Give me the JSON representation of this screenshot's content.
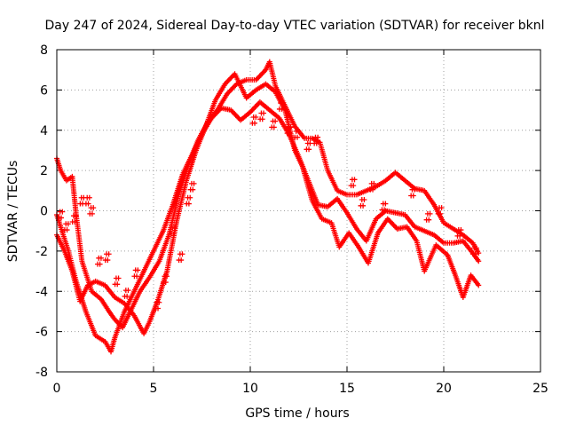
{
  "chart_data": {
    "type": "scatter",
    "title": "Day 247 of 2024, Sidereal Day-to-day VTEC variation (SDTVAR) for receiver bknl",
    "xlabel": "GPS time / hours",
    "ylabel": "SDTVAR / TECUs",
    "xlim": [
      0,
      25
    ],
    "ylim": [
      -8,
      8
    ],
    "xticks": [
      0,
      5,
      10,
      15,
      20,
      25
    ],
    "yticks": [
      -8,
      -6,
      -4,
      -2,
      0,
      2,
      4,
      6,
      8
    ],
    "grid": true,
    "marker": "plus",
    "color": "#ff0000",
    "series": [
      {
        "name": "track-a",
        "points": [
          [
            0.0,
            2.6
          ],
          [
            0.2,
            2.0
          ],
          [
            0.5,
            1.5
          ],
          [
            0.8,
            1.7
          ],
          [
            1.0,
            -0.2
          ],
          [
            1.3,
            -2.5
          ],
          [
            1.8,
            -4.0
          ],
          [
            2.3,
            -4.4
          ],
          [
            2.7,
            -5.0
          ],
          [
            3.0,
            -5.4
          ],
          [
            3.4,
            -5.8
          ],
          [
            3.8,
            -5.0
          ],
          [
            4.3,
            -4.0
          ],
          [
            4.8,
            -3.3
          ],
          [
            5.3,
            -2.5
          ],
          [
            5.8,
            -1.2
          ],
          [
            6.3,
            0.8
          ],
          [
            6.8,
            2.3
          ],
          [
            7.3,
            3.5
          ],
          [
            7.8,
            4.4
          ],
          [
            8.3,
            5.0
          ],
          [
            8.8,
            5.8
          ],
          [
            9.3,
            6.3
          ],
          [
            9.8,
            6.5
          ],
          [
            10.3,
            6.5
          ],
          [
            10.8,
            7.0
          ],
          [
            11.0,
            7.4
          ],
          [
            11.3,
            6.2
          ],
          [
            11.8,
            5.2
          ],
          [
            12.3,
            4.2
          ],
          [
            12.8,
            3.6
          ],
          [
            13.2,
            3.6
          ],
          [
            13.6,
            3.4
          ],
          [
            14.0,
            2.0
          ],
          [
            14.5,
            1.0
          ],
          [
            15.0,
            0.8
          ],
          [
            15.5,
            0.8
          ],
          [
            16.0,
            1.0
          ],
          [
            16.5,
            1.2
          ],
          [
            17.0,
            1.5
          ],
          [
            17.5,
            1.9
          ],
          [
            18.0,
            1.5
          ],
          [
            18.5,
            1.1
          ],
          [
            19.0,
            1.0
          ],
          [
            19.5,
            0.3
          ],
          [
            20.0,
            -0.6
          ],
          [
            20.5,
            -0.9
          ],
          [
            21.0,
            -1.2
          ],
          [
            21.5,
            -1.6
          ],
          [
            21.8,
            -2.1
          ]
        ]
      },
      {
        "name": "track-b",
        "points": [
          [
            0.0,
            -0.2
          ],
          [
            0.3,
            -1.1
          ],
          [
            0.6,
            -2.0
          ],
          [
            1.0,
            -3.5
          ],
          [
            1.5,
            -5.0
          ],
          [
            2.0,
            -6.2
          ],
          [
            2.5,
            -6.5
          ],
          [
            2.8,
            -7.0
          ],
          [
            3.0,
            -6.3
          ],
          [
            3.5,
            -5.0
          ],
          [
            4.0,
            -4.0
          ],
          [
            4.5,
            -3.0
          ],
          [
            5.0,
            -2.0
          ],
          [
            5.5,
            -1.0
          ],
          [
            6.0,
            0.3
          ],
          [
            6.5,
            1.8
          ],
          [
            7.0,
            2.8
          ],
          [
            7.5,
            3.8
          ],
          [
            8.0,
            4.6
          ],
          [
            8.5,
            5.1
          ],
          [
            9.0,
            5.0
          ],
          [
            9.5,
            4.5
          ],
          [
            10.0,
            4.9
          ],
          [
            10.5,
            5.4
          ],
          [
            11.0,
            5.0
          ],
          [
            11.5,
            4.6
          ],
          [
            12.0,
            3.8
          ],
          [
            12.5,
            2.7
          ],
          [
            13.0,
            1.5
          ],
          [
            13.5,
            0.3
          ],
          [
            14.0,
            0.2
          ],
          [
            14.5,
            0.6
          ],
          [
            15.0,
            -0.1
          ],
          [
            15.5,
            -0.9
          ],
          [
            16.0,
            -1.5
          ],
          [
            16.5,
            -0.4
          ],
          [
            17.0,
            0.0
          ],
          [
            17.5,
            -0.1
          ],
          [
            18.0,
            -0.2
          ],
          [
            18.5,
            -0.8
          ],
          [
            19.0,
            -1.0
          ],
          [
            19.5,
            -1.2
          ],
          [
            20.0,
            -1.6
          ],
          [
            20.5,
            -1.6
          ],
          [
            21.0,
            -1.5
          ],
          [
            21.5,
            -2.1
          ],
          [
            21.8,
            -2.5
          ]
        ]
      },
      {
        "name": "track-c",
        "points": [
          [
            0.0,
            -1.2
          ],
          [
            0.4,
            -2.0
          ],
          [
            0.8,
            -3.0
          ],
          [
            1.2,
            -4.5
          ],
          [
            1.6,
            -3.7
          ],
          [
            2.0,
            -3.5
          ],
          [
            2.5,
            -3.7
          ],
          [
            3.0,
            -4.3
          ],
          [
            3.5,
            -4.6
          ],
          [
            4.0,
            -5.2
          ],
          [
            4.5,
            -6.1
          ],
          [
            4.8,
            -5.5
          ],
          [
            5.2,
            -4.5
          ],
          [
            5.7,
            -3.0
          ],
          [
            6.2,
            -0.5
          ],
          [
            6.7,
            1.5
          ],
          [
            7.2,
            3.0
          ],
          [
            7.7,
            4.2
          ],
          [
            8.2,
            5.5
          ],
          [
            8.7,
            6.3
          ],
          [
            9.2,
            6.8
          ],
          [
            9.8,
            5.6
          ],
          [
            10.3,
            6.0
          ],
          [
            10.8,
            6.3
          ],
          [
            11.3,
            5.9
          ],
          [
            11.8,
            5.0
          ],
          [
            12.3,
            3.0
          ],
          [
            12.7,
            2.2
          ],
          [
            13.2,
            0.5
          ],
          [
            13.7,
            -0.4
          ],
          [
            14.2,
            -0.6
          ],
          [
            14.6,
            -1.8
          ],
          [
            15.1,
            -1.1
          ],
          [
            15.6,
            -1.8
          ],
          [
            16.1,
            -2.6
          ],
          [
            16.6,
            -1.1
          ],
          [
            17.1,
            -0.4
          ],
          [
            17.6,
            -0.9
          ],
          [
            18.1,
            -0.8
          ],
          [
            18.6,
            -1.5
          ],
          [
            19.0,
            -3.0
          ],
          [
            19.6,
            -1.7
          ],
          [
            20.2,
            -2.2
          ],
          [
            20.6,
            -3.2
          ],
          [
            21.0,
            -4.3
          ],
          [
            21.4,
            -3.2
          ],
          [
            21.8,
            -3.7
          ]
        ]
      },
      {
        "name": "fragments",
        "points": [
          [
            0.2,
            -0.2
          ],
          [
            0.5,
            -0.8
          ],
          [
            0.9,
            -0.4
          ],
          [
            1.3,
            0.5
          ],
          [
            1.6,
            0.5
          ],
          [
            1.8,
            0.0
          ],
          [
            2.2,
            -2.5
          ],
          [
            2.6,
            -2.3
          ],
          [
            3.1,
            -3.5
          ],
          [
            3.6,
            -4.1
          ],
          [
            4.1,
            -3.1
          ],
          [
            5.2,
            -4.7
          ],
          [
            5.6,
            -3.4
          ],
          [
            6.0,
            -1.0
          ],
          [
            6.4,
            -2.3
          ],
          [
            6.8,
            0.5
          ],
          [
            7.0,
            1.2
          ],
          [
            10.2,
            4.5
          ],
          [
            10.6,
            4.7
          ],
          [
            11.2,
            4.3
          ],
          [
            11.6,
            5.2
          ],
          [
            12.0,
            4.0
          ],
          [
            12.4,
            3.8
          ],
          [
            13.0,
            3.2
          ],
          [
            13.4,
            3.5
          ],
          [
            15.3,
            1.4
          ],
          [
            15.8,
            0.4
          ],
          [
            16.3,
            1.2
          ],
          [
            16.9,
            0.2
          ],
          [
            18.4,
            0.9
          ],
          [
            19.2,
            -0.3
          ],
          [
            19.8,
            0.0
          ],
          [
            20.8,
            -1.1
          ],
          [
            21.6,
            -2.0
          ]
        ]
      }
    ]
  }
}
